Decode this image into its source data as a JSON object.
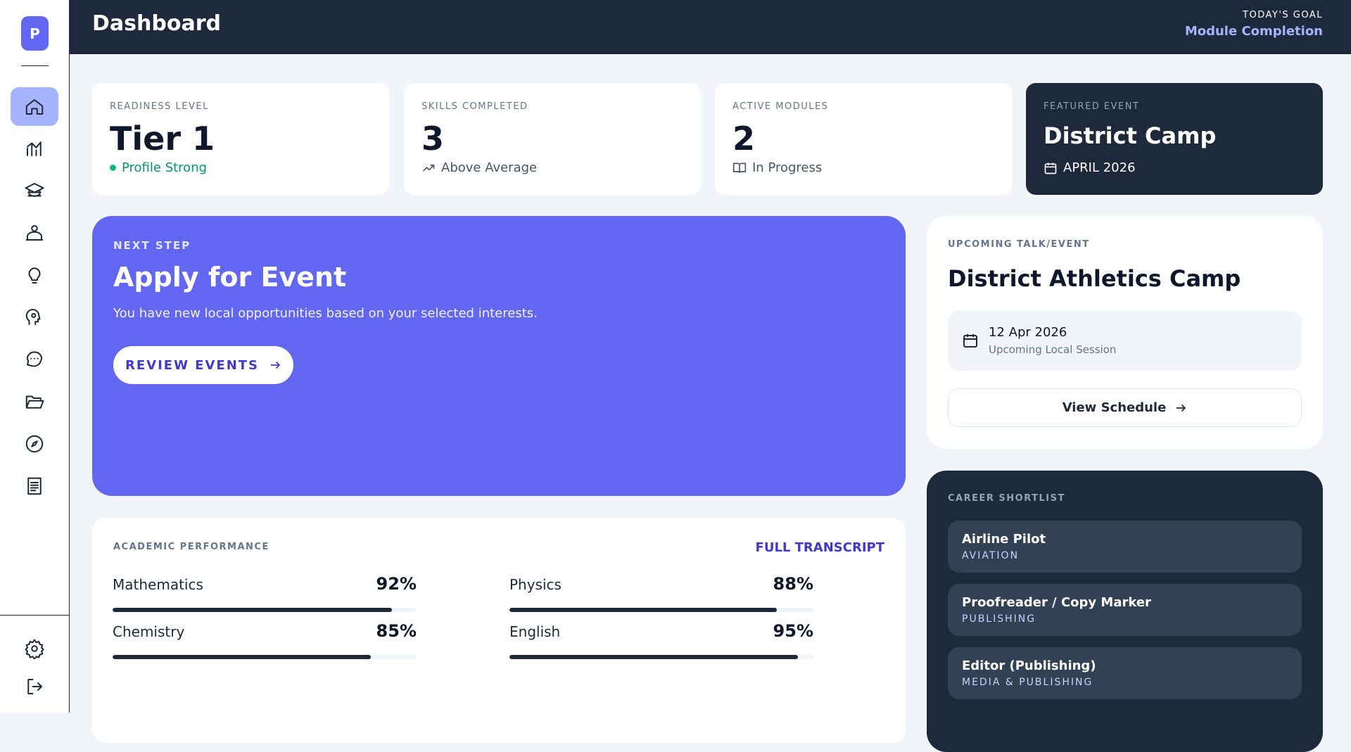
{
  "sidebar": {
    "logo": "P"
  },
  "header": {
    "title": "Dashboard",
    "goal_label": "TODAY'S GOAL",
    "goal": "Module Completion"
  },
  "stats": [
    {
      "label": "READINESS LEVEL",
      "value": "Tier 1",
      "note": "Profile Strong"
    },
    {
      "label": "SKILLS COMPLETED",
      "value": "3",
      "note": "Above Average"
    },
    {
      "label": "ACTIVE MODULES",
      "value": "2",
      "note": "In Progress"
    },
    {
      "label": "FEATURED EVENT",
      "value": "District Camp",
      "note": "APRIL 2026"
    }
  ],
  "next_step": {
    "label": "NEXT STEP",
    "title": "Apply for Event",
    "text": "You have new local opportunities based on your selected interests.",
    "button": "REVIEW EVENTS"
  },
  "upcoming": {
    "label": "UPCOMING TALK/EVENT",
    "title": "District Athletics Camp",
    "date": "12 Apr 2026",
    "session": "Upcoming Local Session",
    "button": "View Schedule"
  },
  "academic": {
    "label": "ACADEMIC PERFORMANCE",
    "link": "FULL TRANSCRIPT",
    "subjects": [
      {
        "name": "Mathematics",
        "score": {
          "value": 92,
          "label": "92%"
        }
      },
      {
        "name": "Physics",
        "score": {
          "value": 88,
          "label": "88%"
        }
      },
      {
        "name": "Chemistry",
        "score": {
          "value": 85,
          "label": "85%"
        }
      },
      {
        "name": "English",
        "score": {
          "value": 95,
          "label": "95%"
        }
      }
    ]
  },
  "career": {
    "label": "CAREER SHORTLIST",
    "items": [
      {
        "title": "Airline Pilot",
        "field": "AVIATION"
      },
      {
        "title": "Proofreader / Copy Marker",
        "field": "PUBLISHING"
      },
      {
        "title": "Editor (Publishing)",
        "field": "MEDIA & PUBLISHING"
      }
    ]
  }
}
